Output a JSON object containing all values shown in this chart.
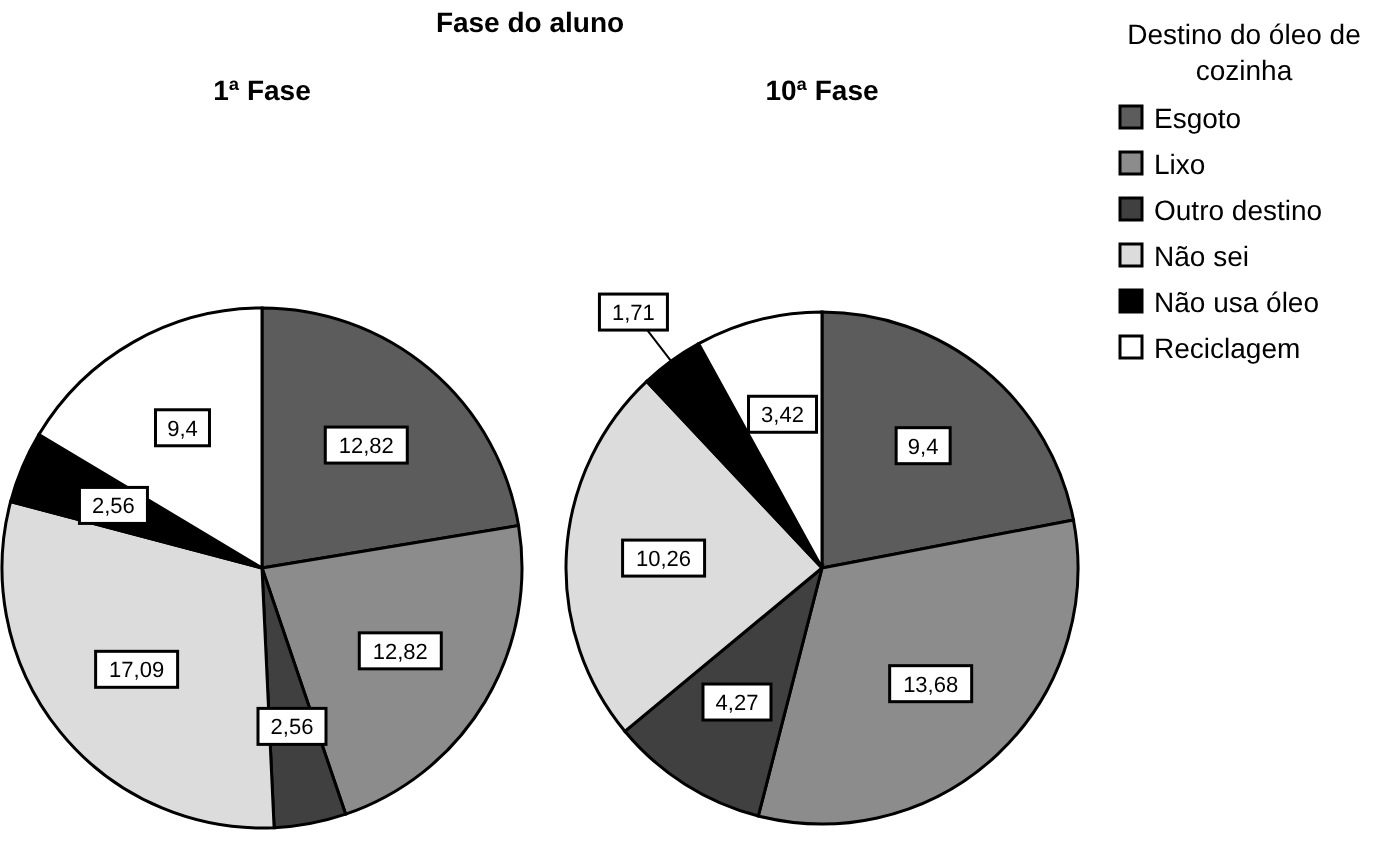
{
  "chart_data": {
    "type": "pie",
    "title": "Fase do aluno",
    "categories": [
      "Esgoto",
      "Lixo",
      "Outro destino",
      "Não sei",
      "Não usa óleo",
      "Reciclagem"
    ],
    "colors": [
      "#5c5c5c",
      "#8c8c8c",
      "#404040",
      "#dcdcdc",
      "#000000",
      "#ffffff"
    ],
    "legend": "right",
    "legend_title": "Destino do óleo de cozinha",
    "series": [
      {
        "name": "1ª Fase",
        "values": [
          12.82,
          12.82,
          2.56,
          17.09,
          2.56,
          9.4
        ],
        "value_labels": [
          "12,82",
          "12,82",
          "2,56",
          "17,09",
          "2,56",
          "9,4"
        ]
      },
      {
        "name": "10ª Fase",
        "values": [
          9.4,
          13.68,
          4.27,
          10.26,
          1.71,
          3.42
        ],
        "value_labels": [
          "9,4",
          "13,68",
          "4,27",
          "10,26",
          "1,71",
          "3,42"
        ]
      }
    ]
  }
}
